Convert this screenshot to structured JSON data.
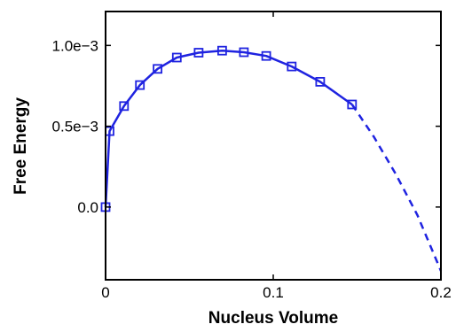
{
  "chart_data": {
    "type": "line",
    "xlabel": "Nucleus Volume",
    "ylabel": "Free Energy",
    "xlim": [
      0,
      0.2
    ],
    "ylim": [
      -0.00045,
      0.00121
    ],
    "x_ticks": [
      0,
      0.1,
      0.2
    ],
    "x_tick_labels": [
      "0",
      "0.1",
      "0.2"
    ],
    "y_ticks": [
      0,
      0.0005,
      0.001
    ],
    "y_tick_labels": [
      "0.0",
      "0.5e−3",
      "1.0e−3"
    ],
    "grid": false,
    "legend": "none",
    "series": [
      {
        "style": "solid",
        "marker": "square",
        "color": "#1f23e0",
        "x": [
          0,
          0.0024,
          0.011,
          0.0205,
          0.031,
          0.0425,
          0.0555,
          0.0695,
          0.0825,
          0.0958,
          0.111,
          0.128,
          0.147
        ],
        "y": [
          0,
          0.00047,
          0.000625,
          0.000755,
          0.000855,
          0.000925,
          0.000955,
          0.000968,
          0.000958,
          0.000935,
          0.00087,
          0.000775,
          0.000635
        ]
      },
      {
        "style": "dashed",
        "marker": "none",
        "color": "#1f23e0",
        "x": [
          0.147,
          0.16,
          0.173,
          0.186,
          0.2
        ],
        "y": [
          0.000635,
          0.000435,
          0.000205,
          -5e-05,
          -0.000395
        ]
      }
    ]
  }
}
